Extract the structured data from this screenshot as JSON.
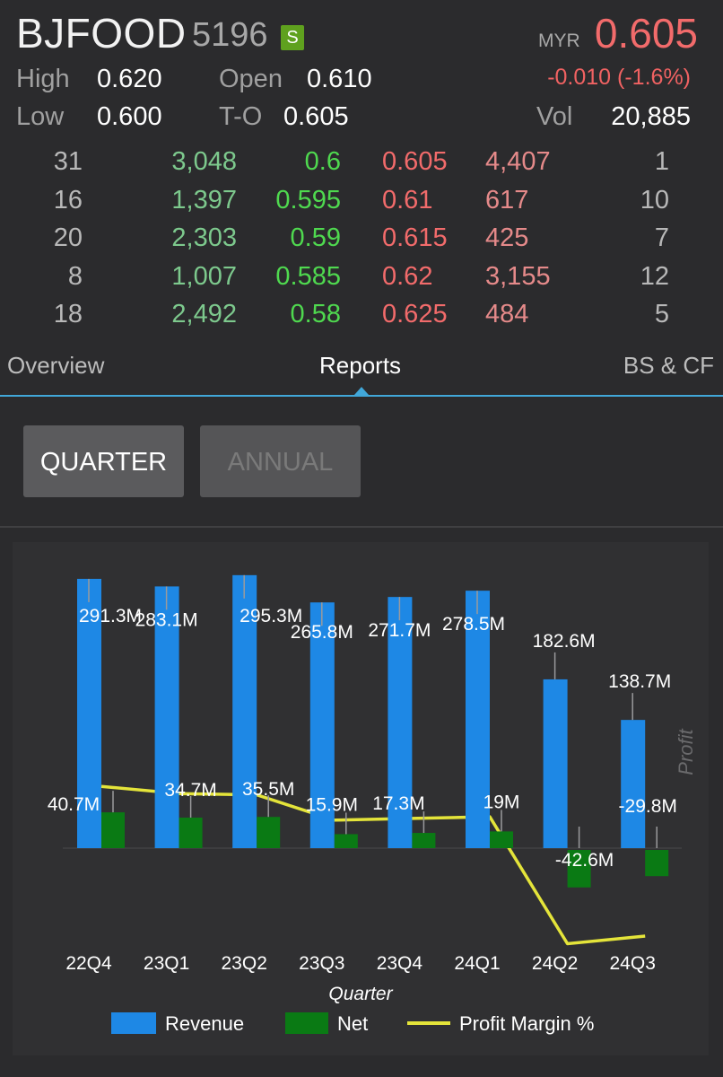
{
  "header": {
    "symbol": "BJFOOD",
    "code": "5196",
    "badge": "S",
    "currency": "MYR",
    "price": "0.605",
    "change": "-0.010 (-1.6%)",
    "high_label": "High",
    "high": "0.620",
    "open_label": "Open",
    "open": "0.610",
    "low_label": "Low",
    "low": "0.600",
    "to_label": "T-O",
    "to": "0.605",
    "vol_label": "Vol",
    "vol": "20,885"
  },
  "orderbook": [
    {
      "bid_count": "31",
      "bid_qty": "3,048",
      "bid": "0.6",
      "ask": "0.605",
      "ask_qty": "4,407",
      "ask_count": "1"
    },
    {
      "bid_count": "16",
      "bid_qty": "1,397",
      "bid": "0.595",
      "ask": "0.61",
      "ask_qty": "617",
      "ask_count": "10"
    },
    {
      "bid_count": "20",
      "bid_qty": "2,303",
      "bid": "0.59",
      "ask": "0.615",
      "ask_qty": "425",
      "ask_count": "7"
    },
    {
      "bid_count": "8",
      "bid_qty": "1,007",
      "bid": "0.585",
      "ask": "0.62",
      "ask_qty": "3,155",
      "ask_count": "12"
    },
    {
      "bid_count": "18",
      "bid_qty": "2,492",
      "bid": "0.58",
      "ask": "0.625",
      "ask_qty": "484",
      "ask_count": "5"
    }
  ],
  "tabs": [
    "Overview",
    "Reports",
    "BS & CF"
  ],
  "active_tab": "Reports",
  "period_buttons": {
    "quarter": "QUARTER",
    "annual": "ANNUAL",
    "selected": "QUARTER"
  },
  "colors": {
    "revenue": "#1e88e5",
    "net": "#0a7a14",
    "margin": "#e4e43a",
    "price_down": "#f26b6b",
    "tab_accent": "#41a7d9"
  },
  "chart_data": {
    "type": "bar",
    "categories": [
      "22Q4",
      "23Q1",
      "23Q2",
      "23Q3",
      "23Q4",
      "24Q1",
      "24Q2",
      "24Q3"
    ],
    "xlabel": "Quarter",
    "right_axis_label": "Profit",
    "series": [
      {
        "name": "Revenue",
        "type": "bar",
        "values": [
          291.3,
          283.1,
          295.3,
          265.8,
          271.7,
          278.5,
          182.6,
          138.7
        ],
        "labels": [
          "291.3M",
          "283.1M",
          "295.3M",
          "265.8M",
          "271.7M",
          "278.5M",
          "182.6M",
          "138.7M"
        ]
      },
      {
        "name": "Net",
        "type": "bar",
        "values": [
          40.7,
          34.7,
          35.5,
          15.9,
          17.3,
          19,
          -42.6,
          -29.8
        ],
        "labels": [
          "40.7M",
          "34.7M",
          "35.5M",
          "15.9M",
          "17.3M",
          "19M",
          "-42.6M",
          "-29.8M"
        ]
      },
      {
        "name": "Profit Margin %",
        "type": "line",
        "values": [
          14,
          12.3,
          12,
          6,
          6.4,
          6.8,
          -23.3,
          -21.5
        ]
      }
    ],
    "legend": [
      "Revenue",
      "Net",
      "Profit Margin %"
    ],
    "legend_position": "bottom"
  }
}
